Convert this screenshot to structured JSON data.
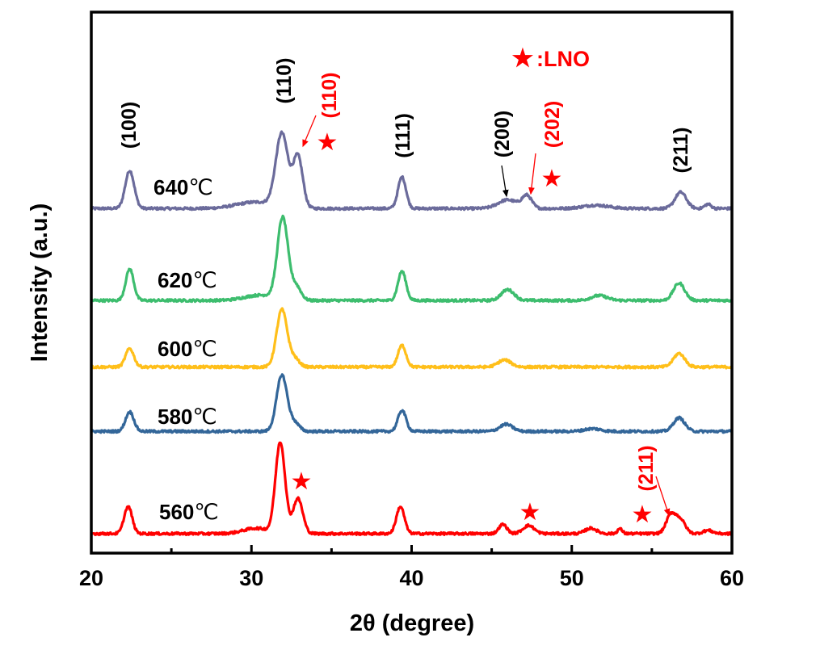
{
  "chart_data": {
    "type": "line",
    "title": "",
    "xlabel": "2θ (degree)",
    "ylabel": "Intensity (a.u.)",
    "xlim": [
      20,
      60
    ],
    "ylim": [
      0,
      100
    ],
    "xticks": [
      20,
      30,
      40,
      50,
      60
    ],
    "xticks_labels": [
      "20",
      "30",
      "40",
      "50",
      "60"
    ],
    "minor_xticks": [
      25,
      35,
      45,
      55
    ],
    "grid": false,
    "legend": {
      "symbol": "★",
      "text": ":LNO",
      "placement": "top-center",
      "color": "#ff0000"
    },
    "series": [
      {
        "name": "640℃",
        "temp": "640",
        "unit": "℃",
        "color": "#6b6b9b",
        "baseline": 63.7,
        "peaks": [
          [
            22.4,
            7.0,
            0.28
          ],
          [
            31.9,
            13.5,
            0.38
          ],
          [
            32.9,
            9.5,
            0.3
          ],
          [
            30.3,
            1.2,
            1.2
          ],
          [
            39.4,
            5.8,
            0.25
          ],
          [
            46.0,
            1.6,
            0.6
          ],
          [
            47.2,
            2.3,
            0.3
          ],
          [
            51.5,
            0.6,
            0.8
          ],
          [
            56.8,
            3.0,
            0.35
          ],
          [
            58.5,
            0.8,
            0.2
          ]
        ]
      },
      {
        "name": "620℃",
        "temp": "620",
        "unit": "℃",
        "color": "#3dbd6e",
        "baseline": 46.7,
        "peaks": [
          [
            22.4,
            5.8,
            0.25
          ],
          [
            31.95,
            15.0,
            0.33
          ],
          [
            32.8,
            2.5,
            0.3
          ],
          [
            30.6,
            1.0,
            1.0
          ],
          [
            39.4,
            5.4,
            0.25
          ],
          [
            46.0,
            2.0,
            0.4
          ],
          [
            51.7,
            0.9,
            0.5
          ],
          [
            56.7,
            3.2,
            0.35
          ]
        ]
      },
      {
        "name": "600℃",
        "temp": "600",
        "unit": "℃",
        "color": "#ffbf1a",
        "baseline": 34.4,
        "peaks": [
          [
            22.4,
            3.4,
            0.26
          ],
          [
            31.9,
            10.6,
            0.33
          ],
          [
            32.7,
            1.5,
            0.3
          ],
          [
            39.4,
            4.0,
            0.25
          ],
          [
            45.8,
            1.3,
            0.4
          ],
          [
            56.7,
            2.5,
            0.35
          ]
        ]
      },
      {
        "name": "580℃",
        "temp": "580",
        "unit": "℃",
        "color": "#336699",
        "baseline": 22.5,
        "peaks": [
          [
            22.4,
            3.6,
            0.26
          ],
          [
            31.9,
            10.4,
            0.33
          ],
          [
            32.7,
            1.5,
            0.3
          ],
          [
            39.4,
            3.9,
            0.25
          ],
          [
            45.9,
            1.3,
            0.4
          ],
          [
            51.3,
            0.5,
            0.5
          ],
          [
            56.7,
            2.5,
            0.35
          ]
        ]
      },
      {
        "name": "560℃",
        "temp": "560",
        "unit": "℃",
        "color": "#ff0000",
        "baseline": 3.6,
        "peaks": [
          [
            22.3,
            5.0,
            0.25
          ],
          [
            31.8,
            16.8,
            0.3
          ],
          [
            32.9,
            6.5,
            0.3
          ],
          [
            30.3,
            1.0,
            0.8
          ],
          [
            39.3,
            5.0,
            0.25
          ],
          [
            45.7,
            1.7,
            0.25
          ],
          [
            47.3,
            1.5,
            0.35
          ],
          [
            51.2,
            1.0,
            0.35
          ],
          [
            53.0,
            0.9,
            0.15
          ],
          [
            56.2,
            3.5,
            0.3
          ],
          [
            56.8,
            2.4,
            0.3
          ],
          [
            58.5,
            0.6,
            0.3
          ]
        ]
      }
    ],
    "annotations": [
      {
        "text": "(100)",
        "color": "#000000",
        "x": 22.4,
        "series": "640℃"
      },
      {
        "text": "(110)",
        "color": "#000000",
        "x": 31.9,
        "series": "640℃"
      },
      {
        "text": "(110)",
        "color": "#ff0000",
        "x": 32.9,
        "series": "640℃",
        "star": true
      },
      {
        "text": "(111)",
        "color": "#000000",
        "x": 39.4,
        "series": "640℃"
      },
      {
        "text": "(200)",
        "color": "#000000",
        "x": 46.0,
        "series": "640℃",
        "arrow": true
      },
      {
        "text": "(202)",
        "color": "#ff0000",
        "x": 47.2,
        "series": "640℃",
        "star": true,
        "arrow": true
      },
      {
        "text": "(211)",
        "color": "#000000",
        "x": 56.8,
        "series": "640℃"
      },
      {
        "text": "(211)",
        "color": "#ff0000",
        "x": 56.2,
        "series": "560℃",
        "star": true,
        "arrow": true
      }
    ],
    "extra_stars": [
      {
        "x": 32.9,
        "series": "560℃"
      },
      {
        "x": 47.3,
        "series": "560℃"
      }
    ]
  }
}
